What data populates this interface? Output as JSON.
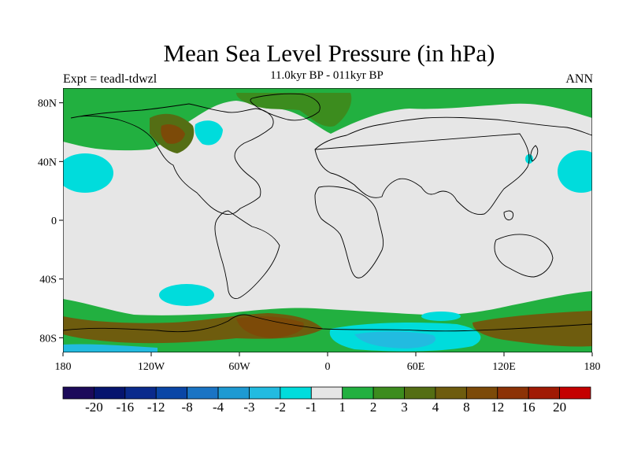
{
  "title": "Mean Sea Level Pressure (in hPa)",
  "subtitle": "11.0kyr BP - 011kyr BP",
  "left_label": "Expt = teadl-tdwzl",
  "right_label": "ANN",
  "map": {
    "lat_ticks": [
      "80N",
      "40N",
      "0",
      "40S",
      "80S"
    ],
    "lon_ticks": [
      "180",
      "120W",
      "60W",
      "0",
      "60E",
      "120E",
      "180"
    ],
    "background_color": "#e6e6e6",
    "coastline_color": "#000000"
  },
  "colorbar": {
    "colors": [
      "#1c0a5a",
      "#06146e",
      "#0a2a8c",
      "#0a46a6",
      "#1a74c4",
      "#1e9ad2",
      "#22bbe0",
      "#00dcdc",
      "#e6e6e6",
      "#22b040",
      "#3c8c1e",
      "#546e14",
      "#6e5c0e",
      "#7c4a08",
      "#8c3206",
      "#a01a04",
      "#c40000"
    ],
    "labels": [
      "-20",
      "-16",
      "-12",
      "-8",
      "-4",
      "-3",
      "-2",
      "-1",
      "1",
      "2",
      "3",
      "4",
      "8",
      "12",
      "16",
      "20"
    ]
  },
  "chart_data": {
    "type": "heatmap",
    "title": "Mean Sea Level Pressure (in hPa)",
    "subtitle": "11.0kyr BP - 011kyr BP",
    "xlim": [
      -180,
      180
    ],
    "ylim": [
      -90,
      90
    ],
    "contour_levels": [
      -20,
      -16,
      -12,
      -8,
      -4,
      -3,
      -2,
      -1,
      1,
      2,
      3,
      4,
      8,
      12,
      16,
      20
    ]
  }
}
